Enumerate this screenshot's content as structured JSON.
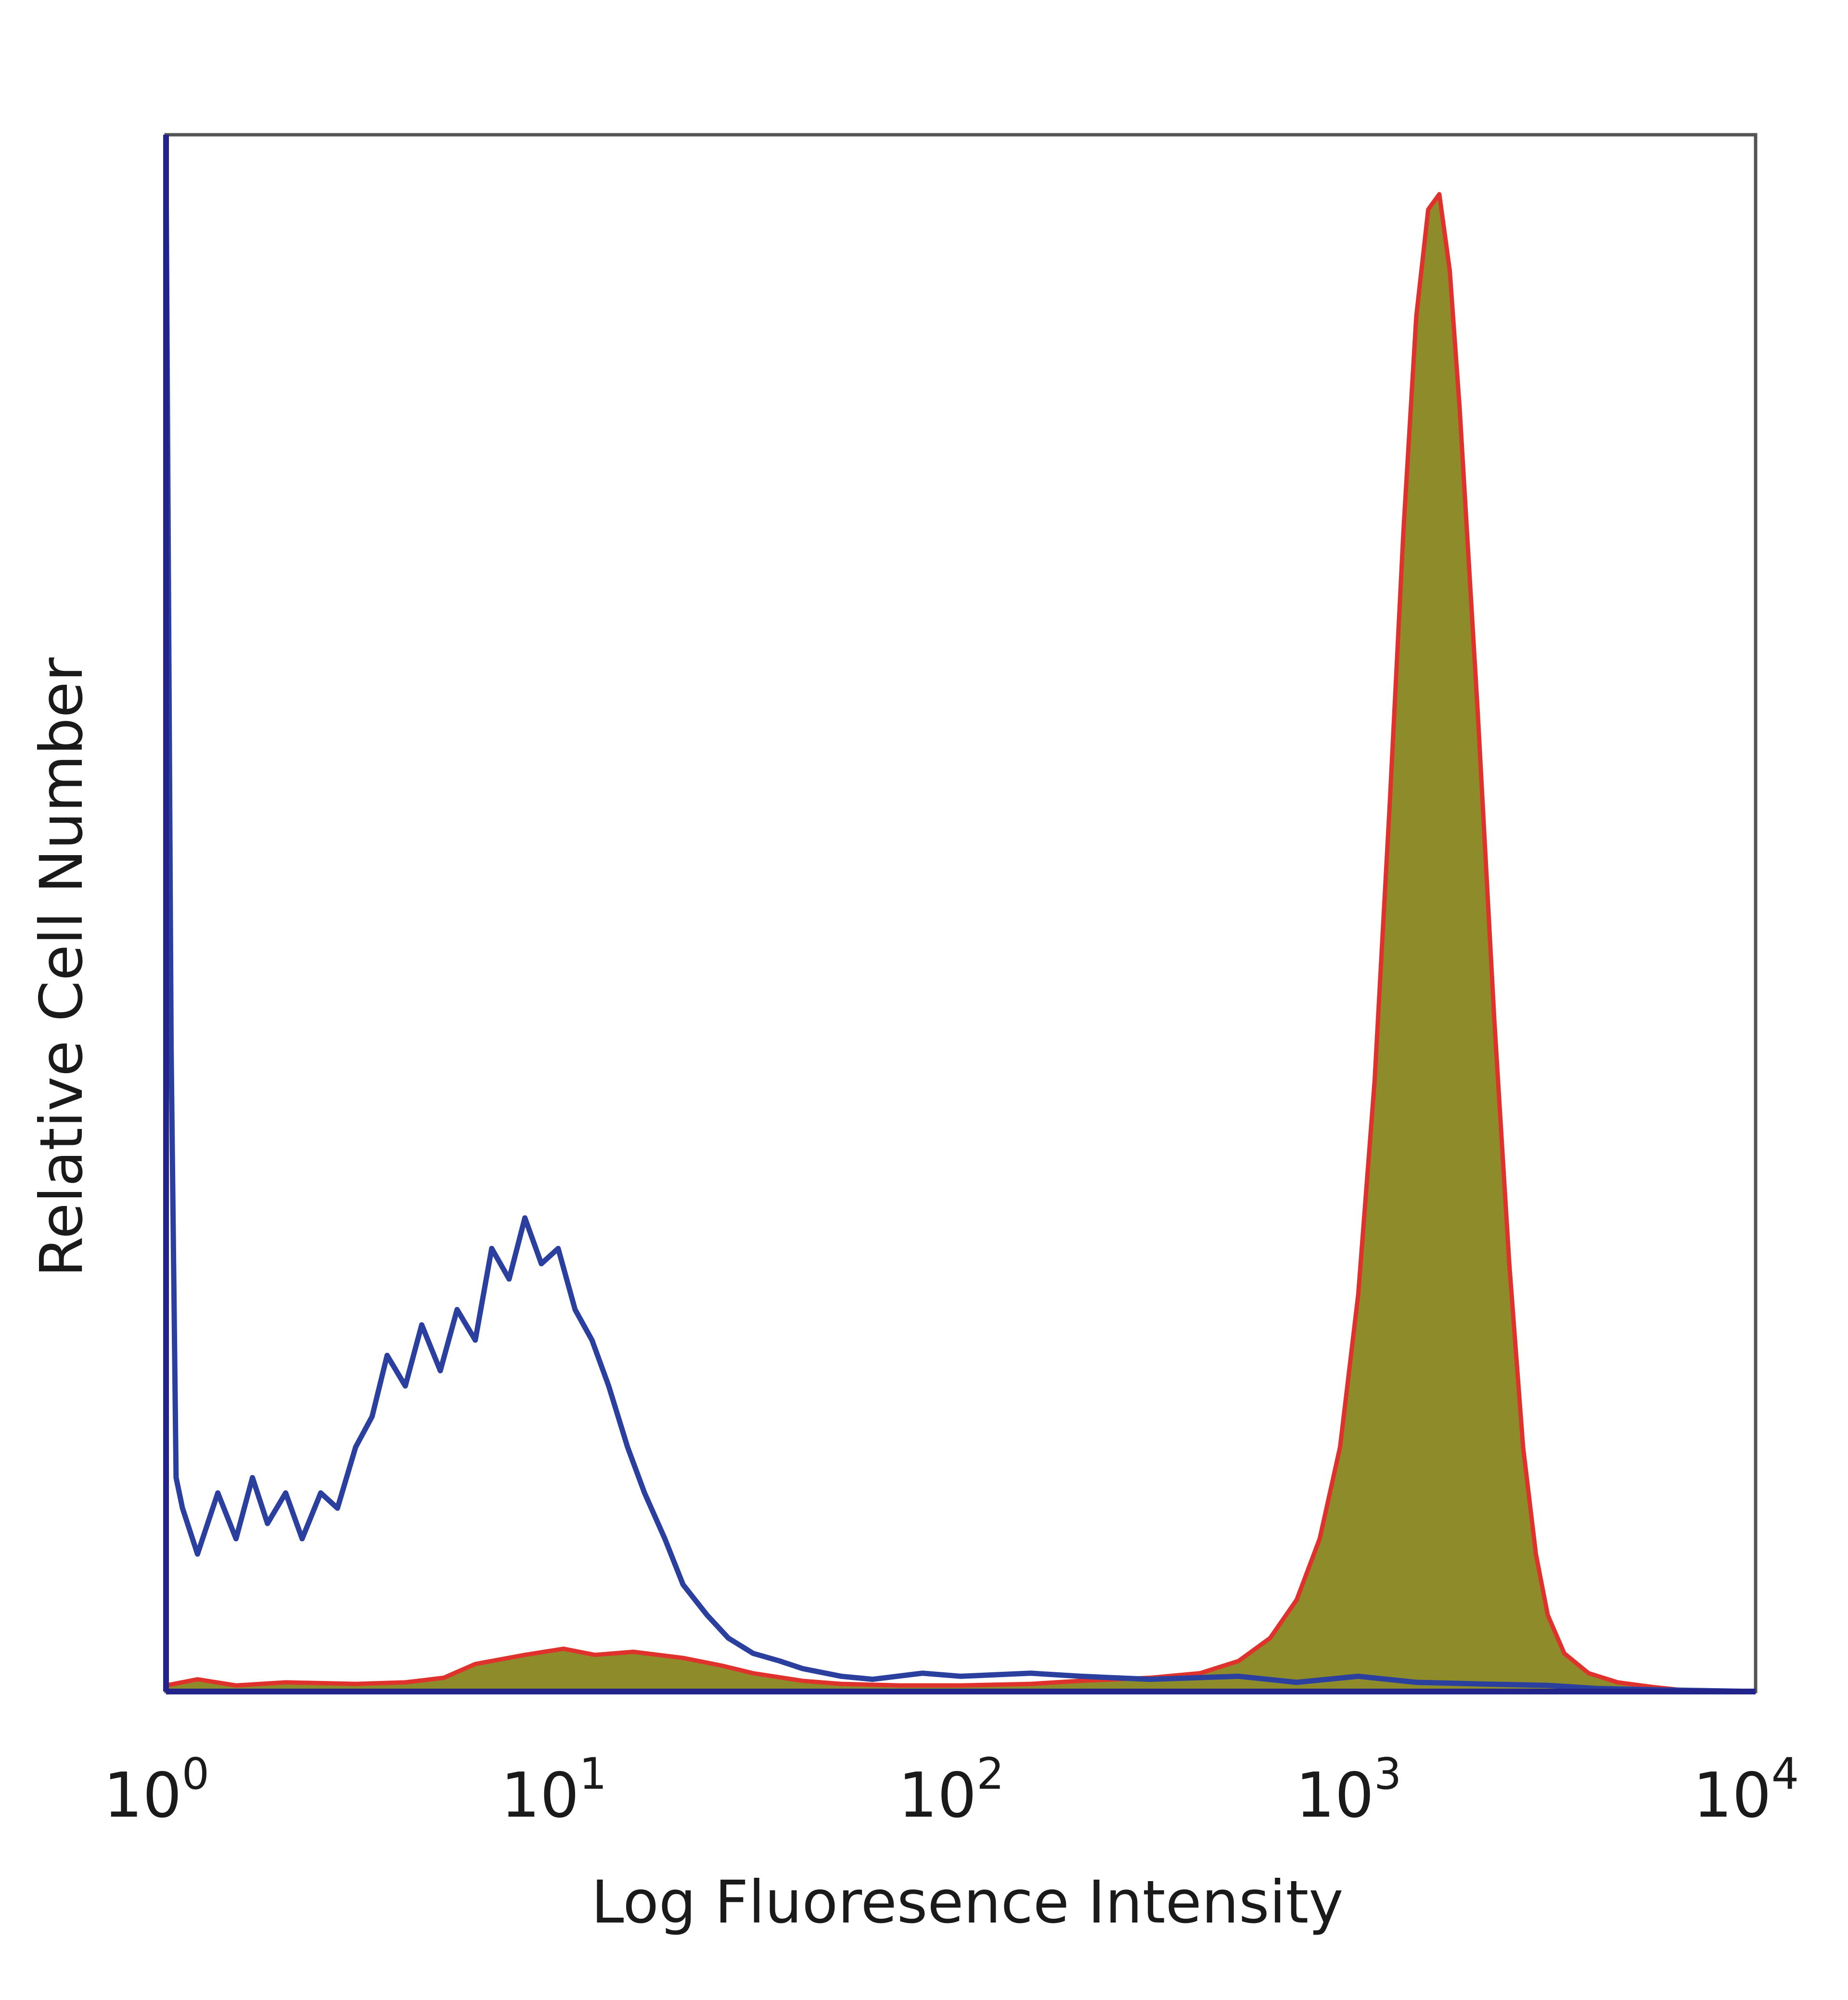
{
  "chart_data": {
    "type": "area",
    "xlabel": "Log Fluoresence Intensity",
    "ylabel": "Relative Cell Number",
    "xscale": "log",
    "xlim": [
      1,
      10000
    ],
    "ylim": [
      0,
      100
    ],
    "grid": false,
    "x_ticks": [
      {
        "base": "10",
        "exp": "0"
      },
      {
        "base": "10",
        "exp": "1"
      },
      {
        "base": "10",
        "exp": "2"
      },
      {
        "base": "10",
        "exp": "3"
      },
      {
        "base": "10",
        "exp": "4"
      }
    ],
    "series": [
      {
        "style": "outline",
        "color": "#2b3f9e",
        "points": [
          [
            1.0,
            100
          ],
          [
            1.03,
            42
          ],
          [
            1.06,
            14
          ],
          [
            1.1,
            12
          ],
          [
            1.2,
            9
          ],
          [
            1.35,
            13
          ],
          [
            1.5,
            10
          ],
          [
            1.65,
            14
          ],
          [
            1.8,
            11
          ],
          [
            2.0,
            13
          ],
          [
            2.2,
            10
          ],
          [
            2.45,
            13
          ],
          [
            2.7,
            12
          ],
          [
            3.0,
            16
          ],
          [
            3.3,
            18
          ],
          [
            3.6,
            22
          ],
          [
            4.0,
            20
          ],
          [
            4.4,
            24
          ],
          [
            4.9,
            21
          ],
          [
            5.4,
            25
          ],
          [
            6.0,
            23
          ],
          [
            6.6,
            29
          ],
          [
            7.3,
            27
          ],
          [
            8.0,
            31
          ],
          [
            8.8,
            28
          ],
          [
            9.7,
            29
          ],
          [
            10.7,
            25
          ],
          [
            11.8,
            23
          ],
          [
            13.0,
            20
          ],
          [
            14.5,
            16
          ],
          [
            16.0,
            13
          ],
          [
            18.0,
            10
          ],
          [
            20.0,
            7
          ],
          [
            23.0,
            5
          ],
          [
            26.0,
            3.5
          ],
          [
            30.0,
            2.5
          ],
          [
            35.0,
            2
          ],
          [
            40.0,
            1.5
          ],
          [
            50.0,
            1
          ],
          [
            60.0,
            0.8
          ],
          [
            80.0,
            1.2
          ],
          [
            100.0,
            1.0
          ],
          [
            150.0,
            1.2
          ],
          [
            200.0,
            1.0
          ],
          [
            300.0,
            0.8
          ],
          [
            500.0,
            1.0
          ],
          [
            700.0,
            0.6
          ],
          [
            1000.0,
            1.0
          ],
          [
            1400.0,
            0.6
          ],
          [
            2000.0,
            0.5
          ],
          [
            3000.0,
            0.4
          ],
          [
            4000.0,
            0.2
          ],
          [
            6000.0,
            0.1
          ],
          [
            10000.0,
            0
          ]
        ]
      },
      {
        "style": "filled",
        "color": "#e0322c",
        "fill": "#8e8b2a",
        "points": [
          [
            1.0,
            0.4
          ],
          [
            1.2,
            0.8
          ],
          [
            1.5,
            0.4
          ],
          [
            2.0,
            0.6
          ],
          [
            3.0,
            0.5
          ],
          [
            4.0,
            0.6
          ],
          [
            5.0,
            0.9
          ],
          [
            6.0,
            1.8
          ],
          [
            8.0,
            2.4
          ],
          [
            10.0,
            2.8
          ],
          [
            12.0,
            2.4
          ],
          [
            15.0,
            2.6
          ],
          [
            20.0,
            2.2
          ],
          [
            25.0,
            1.7
          ],
          [
            30.0,
            1.2
          ],
          [
            40.0,
            0.7
          ],
          [
            50.0,
            0.5
          ],
          [
            70.0,
            0.4
          ],
          [
            100.0,
            0.4
          ],
          [
            150.0,
            0.5
          ],
          [
            200.0,
            0.7
          ],
          [
            300.0,
            0.9
          ],
          [
            400.0,
            1.2
          ],
          [
            500.0,
            2.0
          ],
          [
            600.0,
            3.5
          ],
          [
            700.0,
            6
          ],
          [
            800.0,
            10
          ],
          [
            900.0,
            16
          ],
          [
            1000.0,
            26
          ],
          [
            1100.0,
            40
          ],
          [
            1200.0,
            58
          ],
          [
            1300.0,
            76
          ],
          [
            1400.0,
            90
          ],
          [
            1500.0,
            97
          ],
          [
            1600.0,
            98
          ],
          [
            1700.0,
            93
          ],
          [
            1800.0,
            84
          ],
          [
            2000.0,
            64
          ],
          [
            2200.0,
            44
          ],
          [
            2400.0,
            28
          ],
          [
            2600.0,
            16
          ],
          [
            2800.0,
            9
          ],
          [
            3000.0,
            5
          ],
          [
            3300.0,
            2.5
          ],
          [
            3800.0,
            1.2
          ],
          [
            4500.0,
            0.6
          ],
          [
            5500.0,
            0.3
          ],
          [
            6500.0,
            0.1
          ],
          [
            10000.0,
            0
          ]
        ]
      }
    ]
  }
}
